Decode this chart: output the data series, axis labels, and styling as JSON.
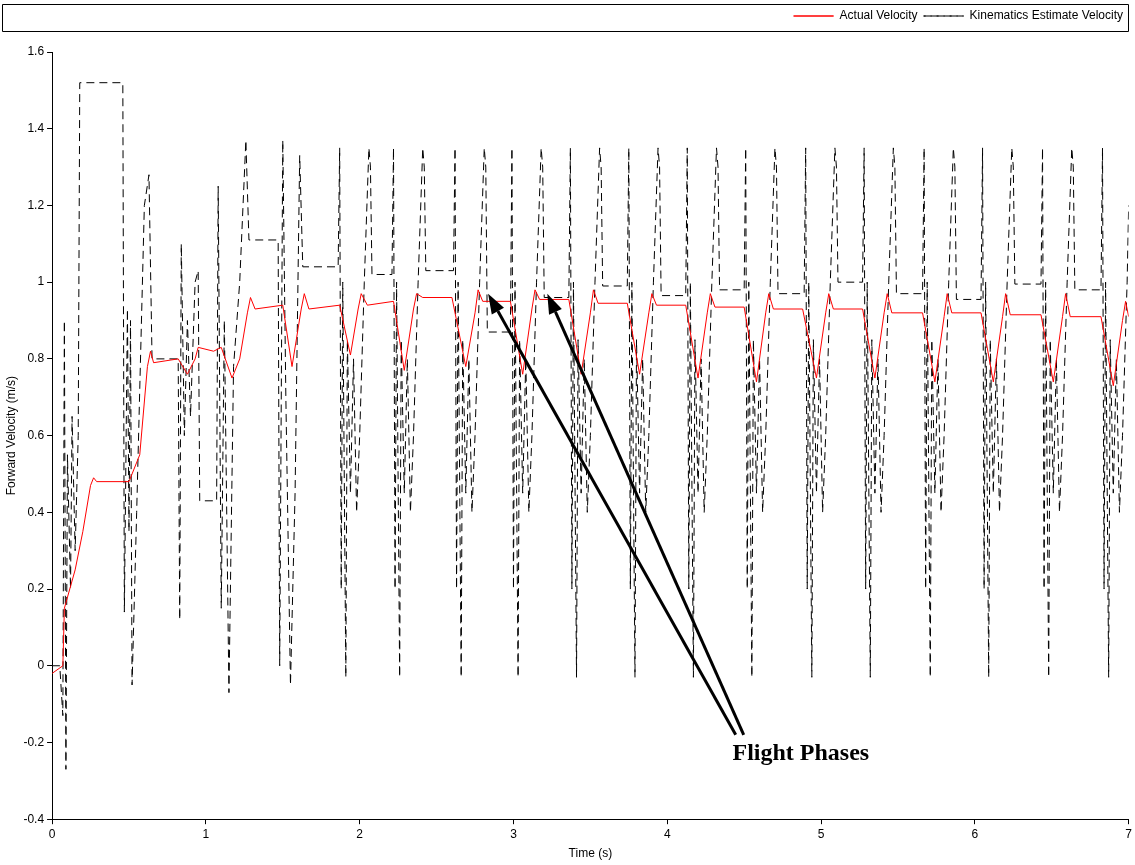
{
  "chart_data": {
    "type": "line",
    "xlabel": "Time (s)",
    "ylabel": "Forward Velocity (m/s)",
    "xlim": [
      0,
      7
    ],
    "xticks": [
      0,
      1,
      2,
      3,
      4,
      5,
      6,
      7
    ],
    "ylim": [
      -0.4,
      1.6
    ],
    "yticks": [
      -0.4,
      -0.2,
      0,
      0.2,
      0.4,
      0.6,
      0.8,
      1,
      1.2,
      1.4,
      1.6
    ],
    "grid": false,
    "legend": "top right",
    "marker": "none",
    "annotations": [
      "Flight Phases"
    ],
    "series": [
      {
        "name": "Actual Velocity",
        "color": "#ff0000",
        "line_style": "solid",
        "x": [
          0,
          0.07,
          0.08,
          0.15,
          0.2,
          0.25,
          0.27,
          0.29,
          0.5,
          0.52,
          0.57,
          0.62,
          0.64,
          0.66,
          0.82,
          0.88,
          0.93,
          0.95,
          1.05,
          1.1,
          1.17,
          1.22,
          1.27,
          1.29,
          1.32,
          1.5,
          1.56,
          1.62,
          1.64,
          1.67,
          1.87,
          1.94,
          1.99,
          2.01,
          2.05,
          2.22,
          2.29,
          2.35,
          2.37,
          2.41,
          2.6,
          2.69,
          2.75,
          2.77,
          2.8,
          2.98,
          3.06,
          3.12,
          3.14,
          3.17,
          3.36,
          3.44,
          3.5,
          3.52,
          3.55,
          3.74,
          3.82,
          3.88,
          3.9,
          3.93,
          4.12,
          4.2,
          4.26,
          4.28,
          4.31,
          4.5,
          4.58,
          4.64,
          4.66,
          4.69,
          4.88,
          4.97,
          5.03,
          5.05,
          5.08,
          5.27,
          5.35,
          5.41,
          5.43,
          5.46,
          5.66,
          5.74,
          5.8,
          5.82,
          5.85,
          6.04,
          6.12,
          6.18,
          6.2,
          6.23,
          6.43,
          6.51,
          6.57,
          6.59,
          6.62,
          6.82,
          6.9,
          6.96,
          6.98,
          7
        ],
        "values": [
          -0.02,
          0,
          0.15,
          0.25,
          0.35,
          0.47,
          0.49,
          0.48,
          0.48,
          0.5,
          0.55,
          0.78,
          0.82,
          0.79,
          0.8,
          0.76,
          0.8,
          0.83,
          0.82,
          0.83,
          0.75,
          0.8,
          0.92,
          0.96,
          0.93,
          0.94,
          0.78,
          0.93,
          0.97,
          0.93,
          0.94,
          0.81,
          0.93,
          0.97,
          0.94,
          0.95,
          0.77,
          0.93,
          0.97,
          0.96,
          0.96,
          0.78,
          0.92,
          0.98,
          0.95,
          0.95,
          0.76,
          0.93,
          0.98,
          0.955,
          0.955,
          0.76,
          0.92,
          0.98,
          0.945,
          0.945,
          0.76,
          0.92,
          0.97,
          0.94,
          0.94,
          0.75,
          0.92,
          0.97,
          0.935,
          0.935,
          0.74,
          0.92,
          0.97,
          0.93,
          0.93,
          0.75,
          0.92,
          0.97,
          0.93,
          0.93,
          0.75,
          0.92,
          0.97,
          0.92,
          0.92,
          0.74,
          0.91,
          0.97,
          0.92,
          0.92,
          0.74,
          0.91,
          0.97,
          0.915,
          0.915,
          0.74,
          0.91,
          0.97,
          0.91,
          0.91,
          0.73,
          0.9,
          0.95,
          0.91
        ]
      },
      {
        "name": "Kinematics Estimate Velocity",
        "color": "#000000",
        "line_style": "dashed",
        "x": [
          0,
          0.05,
          0.07,
          0.08,
          0.09,
          0.1,
          0.12,
          0.13,
          0.15,
          0.17,
          0.18,
          0.46,
          0.47,
          0.49,
          0.5,
          0.51,
          0.52,
          0.55,
          0.6,
          0.63,
          0.65,
          0.82,
          0.83,
          0.84,
          0.86,
          0.88,
          0.9,
          0.93,
          0.95,
          0.96,
          1.07,
          1.08,
          1.1,
          1.12,
          1.15,
          1.18,
          1.22,
          1.26,
          1.28,
          1.47,
          1.48,
          1.5,
          1.52,
          1.55,
          1.58,
          1.61,
          1.63,
          1.86,
          1.87,
          1.88,
          1.89,
          1.91,
          1.92,
          1.94,
          1.96,
          1.98,
          2.0,
          2.03,
          2.06,
          2.07,
          2.08,
          2.21,
          2.22,
          2.23,
          2.24,
          2.26,
          2.27,
          2.29,
          2.31,
          2.33,
          2.35,
          2.38,
          2.41,
          2.42,
          2.43,
          2.61,
          2.62,
          2.63,
          2.64,
          2.66,
          2.67,
          2.69,
          2.71,
          2.73,
          2.75,
          2.78,
          2.81,
          2.82,
          2.83,
          2.98,
          2.99,
          3.0,
          3.01,
          3.03,
          3.04,
          3.06,
          3.08,
          3.1,
          3.12,
          3.15,
          3.18,
          3.19,
          3.2,
          3.36,
          3.37,
          3.38,
          3.39,
          3.41,
          3.42,
          3.44,
          3.46,
          3.48,
          3.5,
          3.53,
          3.56,
          3.57,
          3.58,
          3.74,
          3.75,
          3.76,
          3.77,
          3.79,
          3.8,
          3.82,
          3.84,
          3.86,
          3.88,
          3.91,
          3.94,
          3.95,
          3.96,
          4.12,
          4.13,
          4.14,
          4.15,
          4.17,
          4.18,
          4.2,
          4.22,
          4.24,
          4.26,
          4.29,
          4.32,
          4.33,
          4.34,
          4.5,
          4.51,
          4.52,
          4.53,
          4.55,
          4.56,
          4.58,
          4.6,
          4.62,
          4.64,
          4.67,
          4.7,
          4.71,
          4.72,
          4.89,
          4.9,
          4.91,
          4.92,
          4.94,
          4.95,
          4.97,
          4.99,
          5.01,
          5.03,
          5.06,
          5.09,
          5.1,
          5.11,
          5.27,
          5.28,
          5.29,
          5.3,
          5.32,
          5.33,
          5.35,
          5.37,
          5.39,
          5.41,
          5.44,
          5.47,
          5.48,
          5.49,
          5.66,
          5.67,
          5.68,
          5.69,
          5.71,
          5.72,
          5.74,
          5.76,
          5.78,
          5.8,
          5.83,
          5.86,
          5.87,
          5.88,
          6.04,
          6.05,
          6.06,
          6.07,
          6.09,
          6.1,
          6.12,
          6.14,
          6.16,
          6.18,
          6.21,
          6.24,
          6.25,
          6.26,
          6.43,
          6.44,
          6.45,
          6.46,
          6.48,
          6.49,
          6.51,
          6.53,
          6.55,
          6.57,
          6.6,
          6.63,
          6.64,
          6.65,
          6.82,
          6.83,
          6.84,
          6.85,
          6.87,
          6.88,
          6.9,
          6.92,
          6.94,
          6.96,
          6.99,
          7.0
        ],
        "values": [
          0,
          0,
          -0.13,
          0.9,
          -0.27,
          0.55,
          0.2,
          0.65,
          0.3,
          0.6,
          1.52,
          1.52,
          0.14,
          0.93,
          0.35,
          0.9,
          -0.05,
          0.4,
          1.2,
          1.28,
          0.8,
          0.8,
          0.12,
          1.1,
          0.6,
          0.9,
          0.65,
          1.0,
          1.03,
          0.43,
          0.43,
          1.25,
          0.15,
          0.9,
          -0.07,
          0.78,
          1.0,
          1.37,
          1.11,
          1.11,
          0.0,
          1.37,
          0.7,
          -0.05,
          0.45,
          1.33,
          1.04,
          1.04,
          1.35,
          0.2,
          1.0,
          -0.03,
          0.85,
          0.45,
          0.8,
          0.4,
          0.6,
          1.0,
          1.35,
          1.3,
          1.02,
          1.02,
          1.35,
          0.2,
          1.0,
          -0.03,
          0.85,
          0.45,
          0.8,
          0.4,
          0.6,
          1.0,
          1.35,
          1.3,
          1.03,
          1.03,
          1.35,
          0.2,
          1.0,
          -0.03,
          0.85,
          0.45,
          0.8,
          0.4,
          0.6,
          1.0,
          1.35,
          1.3,
          0.87,
          0.87,
          1.35,
          0.2,
          1.0,
          -0.03,
          0.85,
          0.45,
          0.8,
          0.4,
          0.6,
          1.0,
          1.35,
          1.3,
          0.96,
          0.96,
          1.35,
          0.2,
          1.0,
          -0.03,
          0.85,
          0.45,
          0.8,
          0.4,
          0.6,
          1.0,
          1.35,
          1.3,
          0.99,
          0.99,
          1.35,
          0.2,
          1.0,
          -0.03,
          0.85,
          0.45,
          0.8,
          0.4,
          0.6,
          1.0,
          1.35,
          1.3,
          0.965,
          0.965,
          1.35,
          0.2,
          1.0,
          -0.03,
          0.85,
          0.45,
          0.8,
          0.4,
          0.6,
          1.0,
          1.35,
          1.3,
          0.98,
          0.98,
          1.35,
          0.2,
          1.0,
          -0.03,
          0.85,
          0.45,
          0.8,
          0.4,
          0.6,
          1.0,
          1.35,
          1.3,
          0.97,
          0.97,
          1.35,
          0.2,
          1.0,
          -0.03,
          0.85,
          0.45,
          0.8,
          0.4,
          0.6,
          1.0,
          1.35,
          1.3,
          1.0,
          1.0,
          1.35,
          0.2,
          1.0,
          -0.03,
          0.85,
          0.45,
          0.8,
          0.4,
          0.6,
          1.0,
          1.35,
          1.3,
          0.97,
          0.97,
          1.35,
          0.2,
          1.0,
          -0.03,
          0.85,
          0.45,
          0.8,
          0.4,
          0.6,
          1.0,
          1.35,
          1.3,
          0.955,
          0.955,
          1.35,
          0.2,
          1.0,
          -0.03,
          0.85,
          0.45,
          0.8,
          0.4,
          0.6,
          1.0,
          1.35,
          1.3,
          0.995,
          0.995,
          1.35,
          0.2,
          1.0,
          -0.03,
          0.85,
          0.45,
          0.8,
          0.4,
          0.6,
          1.0,
          1.35,
          1.3,
          0.98,
          0.98,
          1.35,
          0.2,
          1.0,
          -0.03,
          0.85,
          0.45,
          0.8,
          0.4,
          0.6,
          1.0,
          1.2
        ]
      }
    ]
  }
}
